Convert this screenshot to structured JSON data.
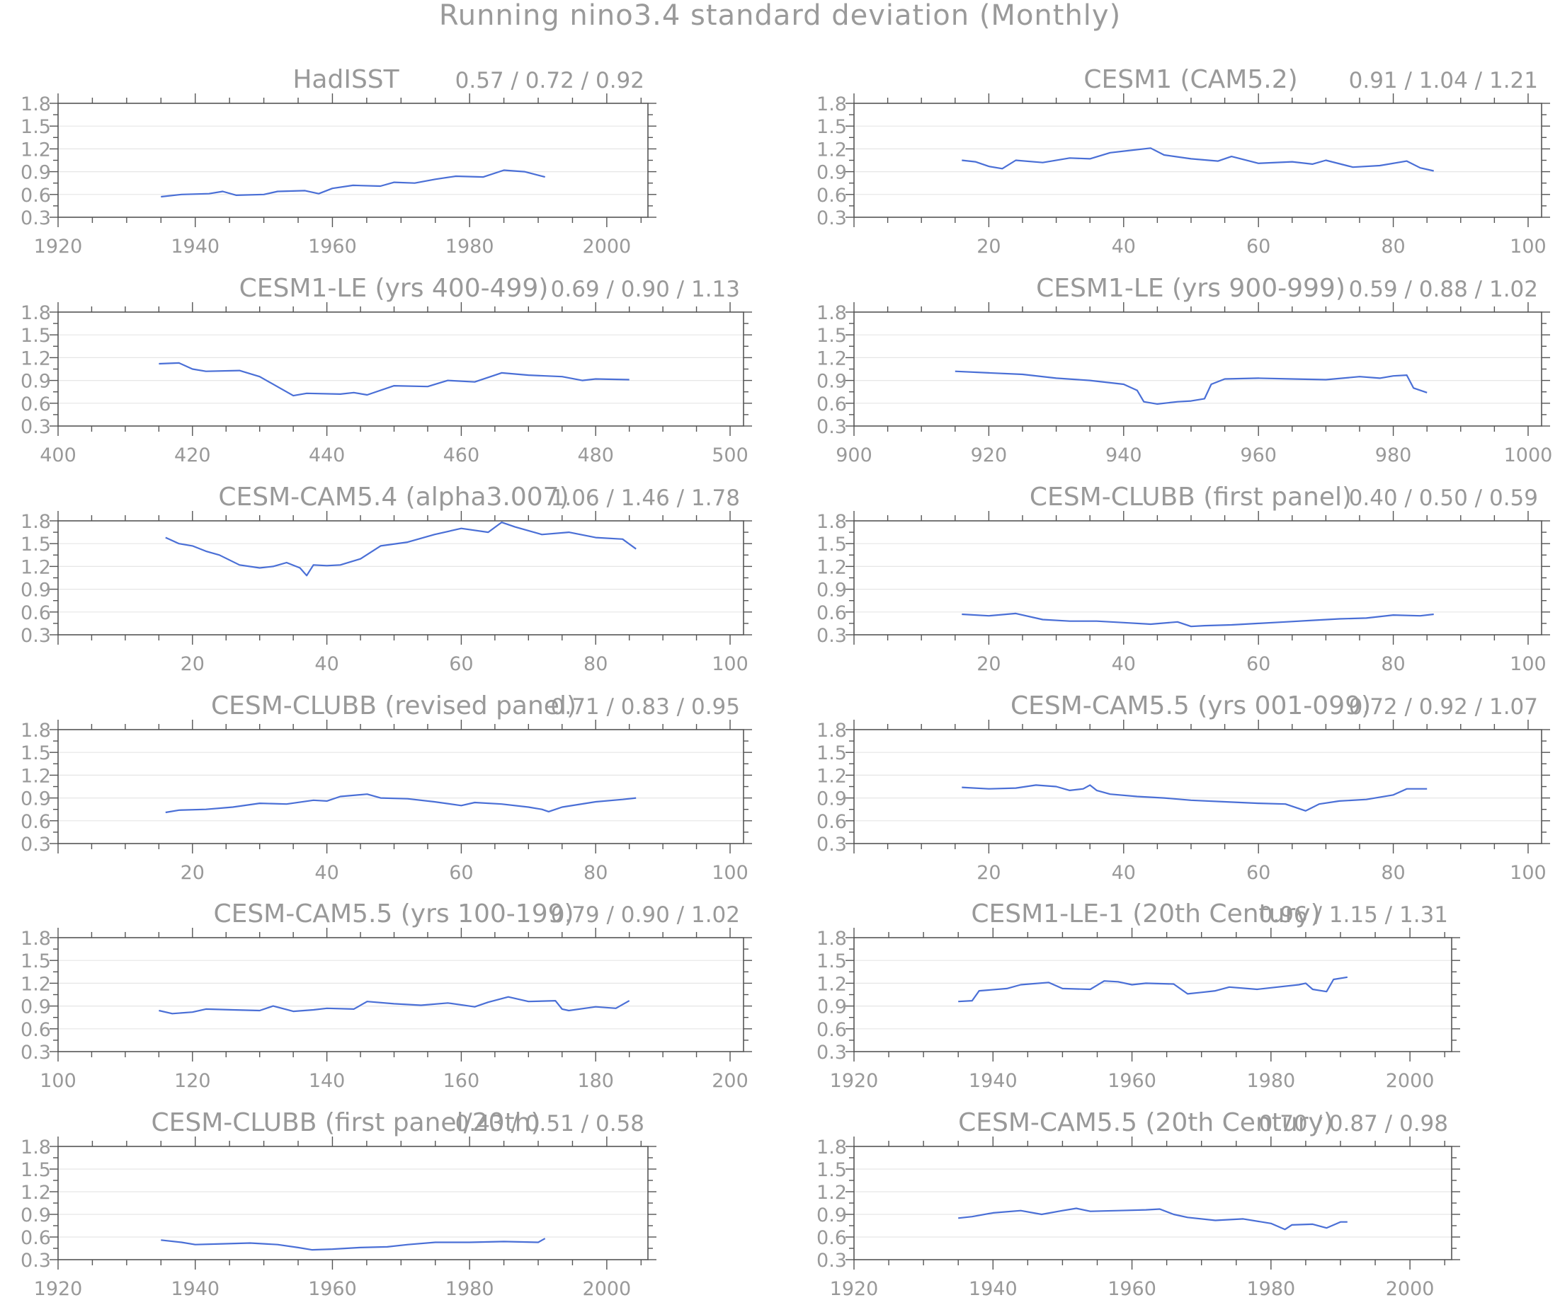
{
  "title": "Running nino3.4 standard deviation (Monthly)",
  "chart_data": [
    {
      "type": "line",
      "title": "HadISST",
      "stats": "0.57 / 0.72 / 0.92",
      "xlim": [
        1920,
        2006
      ],
      "ylim": [
        0.3,
        1.8
      ],
      "xticks": [
        1920,
        1940,
        1960,
        1980,
        2000
      ],
      "yticks": [
        0.3,
        0.6,
        0.9,
        1.2,
        1.5,
        1.8
      ],
      "grid": true,
      "series": [
        {
          "color": "#4a6fd6",
          "x": [
            1935,
            1938,
            1942,
            1944,
            1946,
            1950,
            1952,
            1956,
            1958,
            1960,
            1963,
            1967,
            1969,
            1972,
            1975,
            1978,
            1982,
            1985,
            1988,
            1991
          ],
          "y": [
            0.57,
            0.6,
            0.61,
            0.64,
            0.59,
            0.6,
            0.64,
            0.65,
            0.61,
            0.68,
            0.72,
            0.71,
            0.76,
            0.75,
            0.8,
            0.84,
            0.83,
            0.92,
            0.9,
            0.83
          ]
        }
      ]
    },
    {
      "type": "line",
      "title": "CESM1 (CAM5.2)",
      "stats": "0.91 / 1.04 / 1.21",
      "xlim": [
        0,
        102
      ],
      "ylim": [
        0.3,
        1.8
      ],
      "xticks": [
        20,
        40,
        60,
        80,
        100
      ],
      "yticks": [
        0.3,
        0.6,
        0.9,
        1.2,
        1.5,
        1.8
      ],
      "grid": true,
      "series": [
        {
          "color": "#4a6fd6",
          "x": [
            16,
            18,
            20,
            22,
            24,
            28,
            32,
            35,
            38,
            41,
            44,
            46,
            50,
            54,
            56,
            60,
            65,
            68,
            70,
            74,
            78,
            82,
            84,
            86
          ],
          "y": [
            1.05,
            1.03,
            0.97,
            0.94,
            1.05,
            1.02,
            1.08,
            1.07,
            1.15,
            1.18,
            1.21,
            1.12,
            1.07,
            1.04,
            1.1,
            1.01,
            1.03,
            1.0,
            1.05,
            0.96,
            0.98,
            1.04,
            0.95,
            0.91
          ]
        }
      ]
    },
    {
      "type": "line",
      "title": "CESM1-LE (yrs 400-499)",
      "stats": "0.69 / 0.90 / 1.13",
      "xlim": [
        400,
        502
      ],
      "ylim": [
        0.3,
        1.8
      ],
      "xticks": [
        400,
        420,
        440,
        460,
        480,
        500
      ],
      "yticks": [
        0.3,
        0.6,
        0.9,
        1.2,
        1.5,
        1.8
      ],
      "grid": true,
      "series": [
        {
          "color": "#4a6fd6",
          "x": [
            415,
            418,
            420,
            422,
            427,
            430,
            433,
            435,
            437,
            442,
            444,
            446,
            450,
            455,
            458,
            462,
            466,
            470,
            475,
            478,
            480,
            485
          ],
          "y": [
            1.12,
            1.13,
            1.05,
            1.02,
            1.03,
            0.95,
            0.8,
            0.7,
            0.73,
            0.72,
            0.74,
            0.71,
            0.83,
            0.82,
            0.9,
            0.88,
            1.0,
            0.97,
            0.95,
            0.9,
            0.92,
            0.91
          ]
        }
      ]
    },
    {
      "type": "line",
      "title": "CESM1-LE (yrs 900-999)",
      "stats": "0.59 / 0.88 / 1.02",
      "xlim": [
        900,
        1002
      ],
      "ylim": [
        0.3,
        1.8
      ],
      "xticks": [
        900,
        920,
        940,
        960,
        980,
        1000
      ],
      "yticks": [
        0.3,
        0.6,
        0.9,
        1.2,
        1.5,
        1.8
      ],
      "grid": true,
      "series": [
        {
          "color": "#4a6fd6",
          "x": [
            915,
            920,
            925,
            930,
            935,
            940,
            942,
            943,
            945,
            948,
            950,
            952,
            953,
            955,
            960,
            965,
            970,
            975,
            978,
            980,
            982,
            983,
            985
          ],
          "y": [
            1.02,
            1.0,
            0.98,
            0.93,
            0.9,
            0.85,
            0.77,
            0.62,
            0.59,
            0.62,
            0.63,
            0.66,
            0.85,
            0.92,
            0.93,
            0.92,
            0.91,
            0.95,
            0.93,
            0.96,
            0.97,
            0.8,
            0.74
          ]
        }
      ]
    },
    {
      "type": "line",
      "title": "CESM-CAM5.4 (alpha3.007)",
      "stats": "1.06 / 1.46 / 1.78",
      "xlim": [
        0,
        102
      ],
      "ylim": [
        0.3,
        1.8
      ],
      "xticks": [
        20,
        40,
        60,
        80,
        100
      ],
      "yticks": [
        0.3,
        0.6,
        0.9,
        1.2,
        1.5,
        1.8
      ],
      "grid": true,
      "series": [
        {
          "color": "#4a6fd6",
          "x": [
            16,
            18,
            20,
            22,
            24,
            27,
            30,
            32,
            34,
            36,
            37,
            38,
            40,
            42,
            45,
            48,
            52,
            56,
            60,
            64,
            66,
            68,
            72,
            76,
            80,
            84,
            86
          ],
          "y": [
            1.58,
            1.5,
            1.47,
            1.4,
            1.35,
            1.22,
            1.18,
            1.2,
            1.25,
            1.18,
            1.08,
            1.22,
            1.21,
            1.22,
            1.3,
            1.47,
            1.52,
            1.62,
            1.7,
            1.65,
            1.78,
            1.72,
            1.62,
            1.65,
            1.58,
            1.56,
            1.43
          ]
        }
      ]
    },
    {
      "type": "line",
      "title": "CESM-CLUBB (first panel)",
      "stats": "0.40 / 0.50 / 0.59",
      "xlim": [
        0,
        102
      ],
      "ylim": [
        0.3,
        1.8
      ],
      "xticks": [
        20,
        40,
        60,
        80,
        100
      ],
      "yticks": [
        0.3,
        0.6,
        0.9,
        1.2,
        1.5,
        1.8
      ],
      "grid": true,
      "series": [
        {
          "color": "#4a6fd6",
          "x": [
            16,
            20,
            24,
            28,
            32,
            36,
            40,
            44,
            48,
            50,
            52,
            56,
            60,
            64,
            68,
            72,
            76,
            80,
            84,
            86
          ],
          "y": [
            0.57,
            0.55,
            0.58,
            0.5,
            0.48,
            0.48,
            0.46,
            0.44,
            0.47,
            0.41,
            0.42,
            0.43,
            0.45,
            0.47,
            0.49,
            0.51,
            0.52,
            0.56,
            0.55,
            0.57
          ]
        }
      ]
    },
    {
      "type": "line",
      "title": "CESM-CLUBB (revised panel)",
      "stats": "0.71 / 0.83 / 0.95",
      "xlim": [
        0,
        102
      ],
      "ylim": [
        0.3,
        1.8
      ],
      "xticks": [
        20,
        40,
        60,
        80,
        100
      ],
      "yticks": [
        0.3,
        0.6,
        0.9,
        1.2,
        1.5,
        1.8
      ],
      "grid": true,
      "series": [
        {
          "color": "#4a6fd6",
          "x": [
            16,
            18,
            22,
            26,
            30,
            34,
            38,
            40,
            42,
            46,
            48,
            52,
            56,
            60,
            62,
            66,
            70,
            72,
            73,
            75,
            80,
            84,
            86
          ],
          "y": [
            0.71,
            0.74,
            0.75,
            0.78,
            0.83,
            0.82,
            0.87,
            0.86,
            0.92,
            0.95,
            0.9,
            0.89,
            0.85,
            0.8,
            0.84,
            0.82,
            0.78,
            0.75,
            0.72,
            0.78,
            0.85,
            0.88,
            0.9
          ]
        }
      ]
    },
    {
      "type": "line",
      "title": "CESM-CAM5.5 (yrs 001-099)",
      "stats": "0.72 / 0.92 / 1.07",
      "xlim": [
        0,
        102
      ],
      "ylim": [
        0.3,
        1.8
      ],
      "xticks": [
        20,
        40,
        60,
        80,
        100
      ],
      "yticks": [
        0.3,
        0.6,
        0.9,
        1.2,
        1.5,
        1.8
      ],
      "grid": true,
      "series": [
        {
          "color": "#4a6fd6",
          "x": [
            16,
            20,
            24,
            27,
            30,
            32,
            34,
            35,
            36,
            38,
            42,
            46,
            50,
            55,
            60,
            64,
            66,
            67,
            69,
            72,
            76,
            80,
            82,
            85
          ],
          "y": [
            1.04,
            1.02,
            1.03,
            1.07,
            1.05,
            1.0,
            1.02,
            1.07,
            1.0,
            0.95,
            0.92,
            0.9,
            0.87,
            0.85,
            0.83,
            0.82,
            0.76,
            0.73,
            0.82,
            0.86,
            0.88,
            0.94,
            1.02,
            1.02
          ]
        }
      ]
    },
    {
      "type": "line",
      "title": "CESM-CAM5.5 (yrs 100-199)",
      "stats": "0.79 / 0.90 / 1.02",
      "xlim": [
        100,
        202
      ],
      "ylim": [
        0.3,
        1.8
      ],
      "xticks": [
        100,
        120,
        140,
        160,
        180,
        200
      ],
      "yticks": [
        0.3,
        0.6,
        0.9,
        1.2,
        1.5,
        1.8
      ],
      "grid": true,
      "series": [
        {
          "color": "#4a6fd6",
          "x": [
            115,
            117,
            120,
            122,
            126,
            130,
            132,
            135,
            138,
            140,
            144,
            146,
            150,
            154,
            158,
            162,
            164,
            167,
            170,
            174,
            175,
            176,
            180,
            183,
            185
          ],
          "y": [
            0.84,
            0.8,
            0.82,
            0.86,
            0.85,
            0.84,
            0.9,
            0.83,
            0.85,
            0.87,
            0.86,
            0.96,
            0.93,
            0.91,
            0.94,
            0.89,
            0.95,
            1.02,
            0.96,
            0.97,
            0.86,
            0.84,
            0.89,
            0.87,
            0.97
          ]
        }
      ]
    },
    {
      "type": "line",
      "title": "CESM1-LE-1 (20th Century)",
      "stats": "0.96 / 1.15 / 1.31",
      "xlim": [
        1920,
        2006
      ],
      "ylim": [
        0.3,
        1.8
      ],
      "xticks": [
        1920,
        1940,
        1960,
        1980,
        2000
      ],
      "yticks": [
        0.3,
        0.6,
        0.9,
        1.2,
        1.5,
        1.8
      ],
      "grid": true,
      "series": [
        {
          "color": "#4a6fd6",
          "x": [
            1935,
            1937,
            1938,
            1942,
            1944,
            1948,
            1950,
            1954,
            1956,
            1958,
            1960,
            1962,
            1966,
            1968,
            1970,
            1972,
            1974,
            1978,
            1980,
            1984,
            1985,
            1986,
            1988,
            1989,
            1991
          ],
          "y": [
            0.96,
            0.97,
            1.1,
            1.13,
            1.18,
            1.21,
            1.13,
            1.12,
            1.23,
            1.22,
            1.18,
            1.2,
            1.19,
            1.06,
            1.08,
            1.1,
            1.15,
            1.12,
            1.14,
            1.18,
            1.2,
            1.12,
            1.09,
            1.25,
            1.28
          ]
        }
      ]
    },
    {
      "type": "line",
      "title": "CESM-CLUBB (first panel/20th)",
      "stats": "0.43 / 0.51 / 0.58",
      "xlim": [
        1920,
        2006
      ],
      "ylim": [
        0.3,
        1.8
      ],
      "xticks": [
        1920,
        1940,
        1960,
        1980,
        2000
      ],
      "yticks": [
        0.3,
        0.6,
        0.9,
        1.2,
        1.5,
        1.8
      ],
      "grid": true,
      "series": [
        {
          "color": "#4a6fd6",
          "x": [
            1935,
            1938,
            1940,
            1944,
            1948,
            1952,
            1955,
            1957,
            1960,
            1964,
            1968,
            1971,
            1975,
            1980,
            1985,
            1990,
            1991
          ],
          "y": [
            0.56,
            0.53,
            0.5,
            0.51,
            0.52,
            0.5,
            0.46,
            0.43,
            0.44,
            0.46,
            0.47,
            0.5,
            0.53,
            0.53,
            0.54,
            0.53,
            0.58
          ]
        }
      ]
    },
    {
      "type": "line",
      "title": "CESM-CAM5.5 (20th Century)",
      "stats": "0.70 / 0.87 / 0.98",
      "xlim": [
        1920,
        2006
      ],
      "ylim": [
        0.3,
        1.8
      ],
      "xticks": [
        1920,
        1940,
        1960,
        1980,
        2000
      ],
      "yticks": [
        0.3,
        0.6,
        0.9,
        1.2,
        1.5,
        1.8
      ],
      "grid": true,
      "series": [
        {
          "color": "#4a6fd6",
          "x": [
            1935,
            1937,
            1940,
            1944,
            1947,
            1950,
            1952,
            1954,
            1958,
            1962,
            1964,
            1966,
            1968,
            1972,
            1976,
            1980,
            1982,
            1983,
            1986,
            1988,
            1990,
            1991
          ],
          "y": [
            0.85,
            0.87,
            0.92,
            0.95,
            0.9,
            0.95,
            0.98,
            0.94,
            0.95,
            0.96,
            0.97,
            0.9,
            0.86,
            0.82,
            0.84,
            0.78,
            0.7,
            0.76,
            0.77,
            0.72,
            0.8,
            0.8
          ]
        }
      ]
    }
  ]
}
